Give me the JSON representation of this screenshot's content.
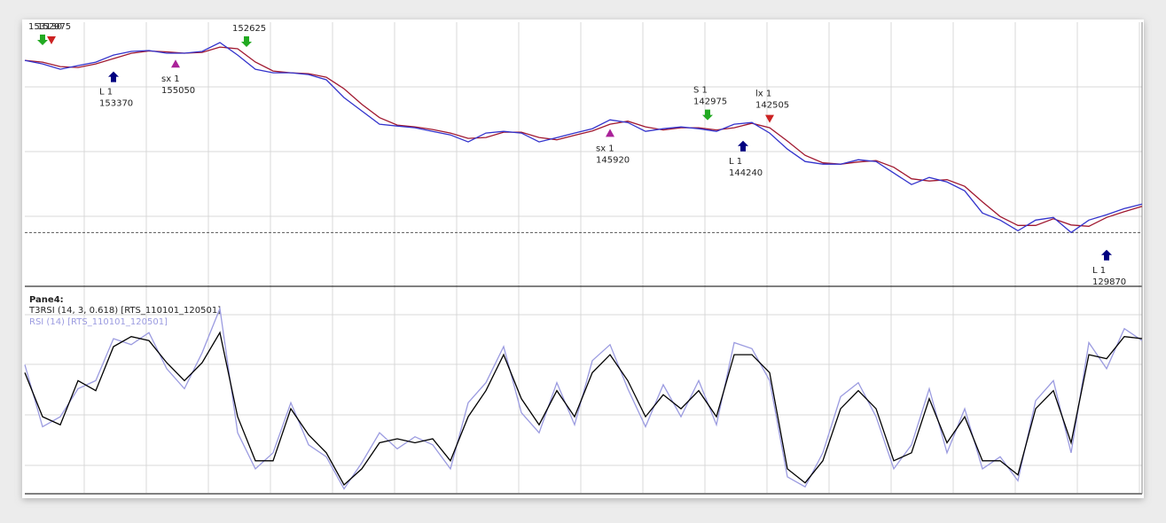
{
  "chart_data": [
    {
      "type": "line",
      "ylim": [
        124000,
        158700
      ],
      "hline": 130970,
      "series": [
        {
          "color": "#3333cc",
          "values": [
            153670,
            153200,
            152500,
            152970,
            153430,
            154370,
            154840,
            154960,
            154610,
            154610,
            154840,
            156010,
            154370,
            152500,
            152030,
            152030,
            151800,
            151100,
            148760,
            147000,
            145250,
            145010,
            144780,
            144310,
            143840,
            142910,
            144080,
            144310,
            144080,
            142910,
            143490,
            144080,
            144660,
            145830,
            145480,
            144310,
            144660,
            144890,
            144660,
            144310,
            145250,
            145480,
            144080,
            141970,
            140330,
            139980,
            139980,
            140570,
            140330,
            138810,
            137290,
            138230,
            137640,
            136470,
            133550,
            132610,
            131210,
            132610,
            132960,
            130970,
            132610,
            133310,
            134130,
            134720
          ]
        },
        {
          "color": "#a01830",
          "values": [
            153670,
            153435,
            152850,
            152735,
            153200,
            153900,
            154600,
            154900,
            154790,
            154610,
            154720,
            155420,
            155190,
            153440,
            152260,
            152030,
            151910,
            151450,
            149930,
            147880,
            146120,
            145130,
            144900,
            144550,
            144080,
            143380,
            143500,
            144200,
            144200,
            143500,
            143200,
            143790,
            144370,
            145250,
            145650,
            144900,
            144490,
            144780,
            144780,
            144490,
            144780,
            145370,
            144780,
            143030,
            141150,
            140160,
            139980,
            140280,
            140450,
            139570,
            138050,
            137760,
            137940,
            137060,
            135010,
            133080,
            131910,
            131910,
            132790,
            131970,
            131790,
            132960,
            133720,
            134430
          ]
        }
      ],
      "signals": [
        {
          "x": 1,
          "price": 153130,
          "color": "#22aa22",
          "shape": "arrow-down"
        },
        {
          "x": 1.5,
          "price": 152975,
          "color": "#cc2222",
          "shape": "triangle-down"
        },
        {
          "x": 12.5,
          "price": 152625,
          "color": "#22aa22",
          "shape": "arrow-down"
        },
        {
          "x": 5,
          "price": 153370,
          "label": "L 1",
          "color": "#000080",
          "shape": "arrow-up"
        },
        {
          "x": 8.5,
          "price": 155050,
          "label": "sx 1",
          "color": "#aa2299",
          "shape": "triangle-up"
        },
        {
          "x": 33,
          "price": 145920,
          "label": "sx 1",
          "color": "#aa2299",
          "shape": "triangle-up"
        },
        {
          "x": 38.5,
          "price": 142975,
          "label": "S 1",
          "color": "#22aa22",
          "shape": "arrow-down"
        },
        {
          "x": 40.5,
          "price": 144240,
          "label": "L 1",
          "color": "#000080",
          "shape": "arrow-up"
        },
        {
          "x": 42,
          "price": 142505,
          "label": "lx 1",
          "color": "#cc2222",
          "shape": "triangle-down"
        },
        {
          "x": 61,
          "price": 129870,
          "label": "L 1",
          "color": "#000080",
          "shape": "arrow-up"
        }
      ]
    },
    {
      "type": "line",
      "title": "Pane4:",
      "ylim": [
        0,
        100
      ],
      "series": [
        {
          "name": "T3RSI (14, 3, 0.618) [RTS_110101_120501]",
          "color": "#000000",
          "values": [
            60,
            38,
            34,
            56,
            51,
            73,
            78,
            76,
            65,
            56,
            65,
            80,
            38,
            16,
            16,
            42,
            29,
            20,
            4,
            12,
            25,
            27,
            25,
            27,
            16,
            38,
            51,
            69,
            47,
            34,
            51,
            38,
            60,
            69,
            56,
            38,
            49,
            42,
            51,
            38,
            69,
            69,
            60,
            12,
            5,
            16,
            42,
            51,
            42,
            16,
            20,
            47,
            25,
            38,
            16,
            16,
            9,
            42,
            51,
            25,
            69,
            67,
            78,
            77
          ]
        },
        {
          "name": "RSI (14) [RTS_110101_120501]",
          "color": "#9b9be0",
          "values": [
            64,
            33,
            38,
            52,
            56,
            77,
            74,
            80,
            62,
            52,
            70,
            92,
            30,
            12,
            20,
            45,
            24,
            18,
            2,
            15,
            30,
            22,
            28,
            24,
            12,
            45,
            55,
            73,
            40,
            30,
            55,
            34,
            66,
            74,
            52,
            33,
            54,
            38,
            56,
            34,
            75,
            72,
            56,
            8,
            3,
            20,
            48,
            55,
            38,
            12,
            24,
            52,
            20,
            42,
            12,
            18,
            6,
            46,
            56,
            20,
            75,
            62,
            82,
            76
          ]
        }
      ]
    }
  ]
}
